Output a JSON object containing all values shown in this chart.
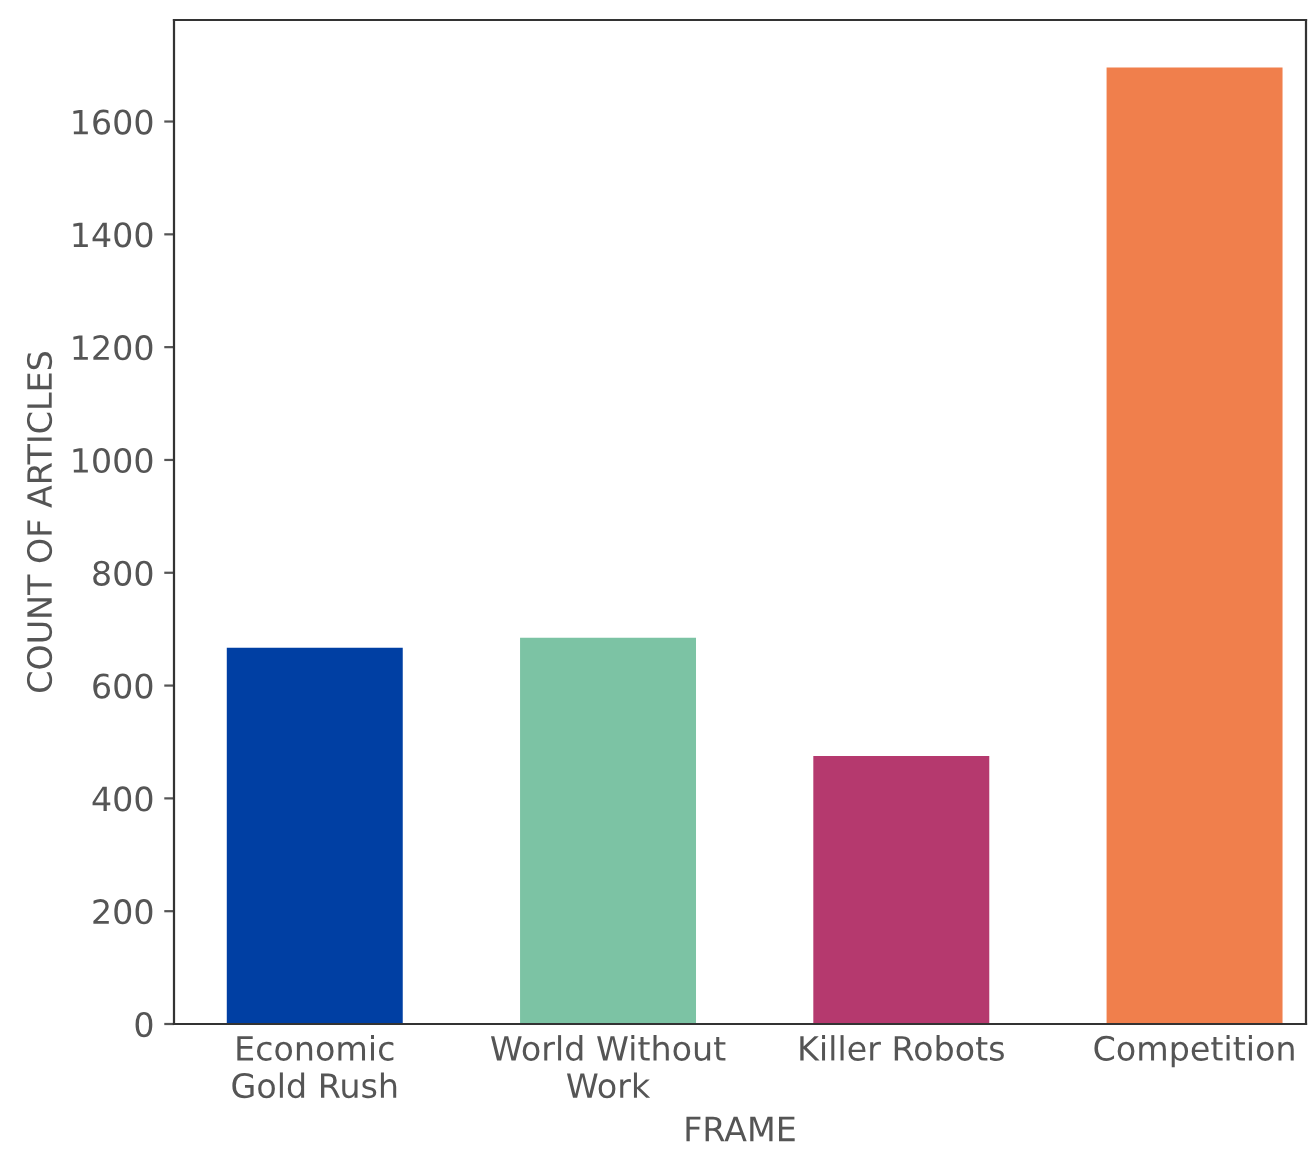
{
  "chart_data": {
    "type": "bar",
    "xlabel": "FRAME",
    "ylabel": "COUNT OF ARTICLES",
    "categories": [
      "Economic\nGold Rush",
      "World Without\nWork",
      "Killer Robots",
      "Competition"
    ],
    "values": [
      667,
      685,
      475,
      1696
    ],
    "colors": [
      "#003fa3",
      "#7cc3a4",
      "#b5396e",
      "#f07f4c"
    ],
    "ylim": [
      0,
      1780
    ],
    "yticks": [
      0,
      200,
      400,
      600,
      800,
      1000,
      1200,
      1400,
      1600
    ],
    "grid": false
  }
}
